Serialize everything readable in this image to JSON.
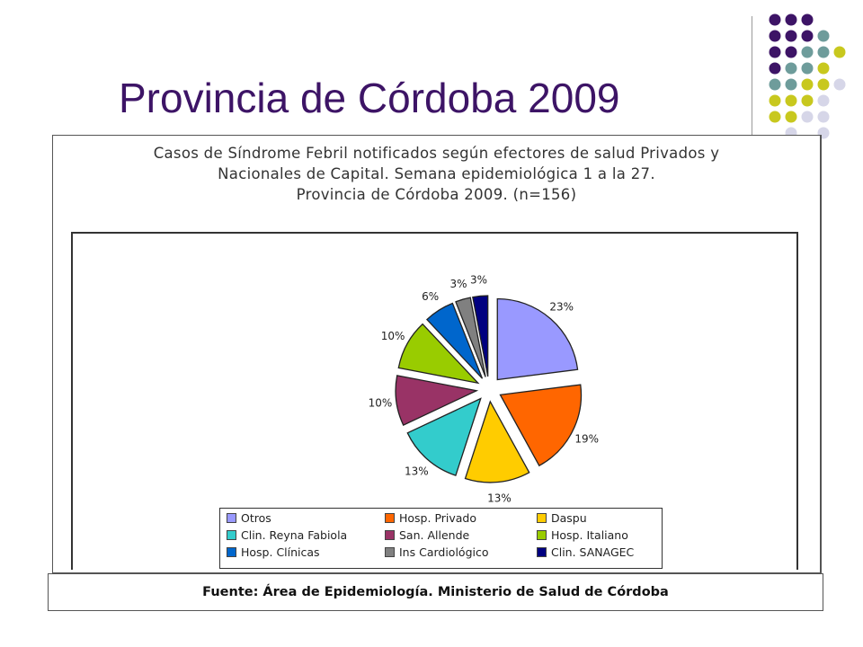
{
  "slide": {
    "title": "Provincia de Córdoba 2009",
    "decoration_dot_colors": [
      "#3d1466",
      "#6e9c9b",
      "#c8c81e",
      "#d6d6e8"
    ]
  },
  "chart_data": {
    "type": "pie",
    "title_lines": [
      "Casos de Síndrome Febril notificados según efectores de  salud Privados y",
      "Nacionales de Capital.  Semana epidemiológica 1 a la 27.",
      "Provincia de Córdoba 2009. (n=156)"
    ],
    "slices": [
      {
        "name": "Otros",
        "value": 23,
        "label": "23%",
        "color": "#9999ff"
      },
      {
        "name": "Hosp. Privado",
        "value": 19,
        "label": "19%",
        "color": "#ff6600"
      },
      {
        "name": "Daspu",
        "value": 13,
        "label": "13%",
        "color": "#ffcc00"
      },
      {
        "name": "Clin. Reyna Fabiola",
        "value": 13,
        "label": "13%",
        "color": "#33cccc"
      },
      {
        "name": "San. Allende",
        "value": 10,
        "label": "10%",
        "color": "#993366"
      },
      {
        "name": "Hosp. Italiano",
        "value": 10,
        "label": "10%",
        "color": "#99cc00"
      },
      {
        "name": "Hosp. Clínicas",
        "value": 6,
        "label": "6%",
        "color": "#0066cc"
      },
      {
        "name": "Ins Cardiológico",
        "value": 3,
        "label": "3%",
        "color": "#808080"
      },
      {
        "name": "Clin. SANAGEC",
        "value": 3,
        "label": "3%",
        "color": "#000080"
      }
    ],
    "legend_placement": "bottom",
    "exploded": true
  },
  "source": "Fuente: Área de Epidemiología. Ministerio de Salud de Córdoba"
}
